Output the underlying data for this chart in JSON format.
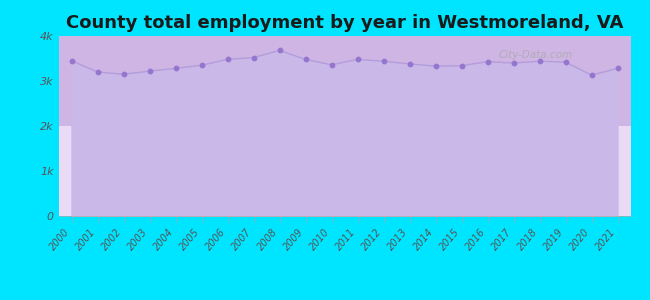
{
  "title": "County total employment by year in Westmoreland, VA",
  "years": [
    2000,
    2001,
    2002,
    2003,
    2004,
    2005,
    2006,
    2007,
    2008,
    2009,
    2010,
    2011,
    2012,
    2013,
    2014,
    2015,
    2016,
    2017,
    2018,
    2019,
    2020,
    2021
  ],
  "values": [
    3450,
    3200,
    3150,
    3220,
    3280,
    3350,
    3480,
    3520,
    3680,
    3480,
    3360,
    3480,
    3440,
    3380,
    3330,
    3340,
    3430,
    3400,
    3440,
    3420,
    3130,
    3280
  ],
  "ylim": [
    0,
    4000
  ],
  "yticks": [
    0,
    1000,
    2000,
    3000,
    4000
  ],
  "ytick_labels": [
    "0",
    "1k",
    "2k",
    "3k",
    "4k"
  ],
  "line_color": "#b39ddb",
  "fill_color": "#c9b8e8",
  "fill_alpha": 1.0,
  "marker_color": "#9575cd",
  "bg_color": "#00e5ff",
  "plot_bg_top": "#f0fff0",
  "plot_bg_bottom": "#d8b4fe",
  "title_fontsize": 13,
  "title_color": "#1a1a1a",
  "watermark": "City-Data.com"
}
